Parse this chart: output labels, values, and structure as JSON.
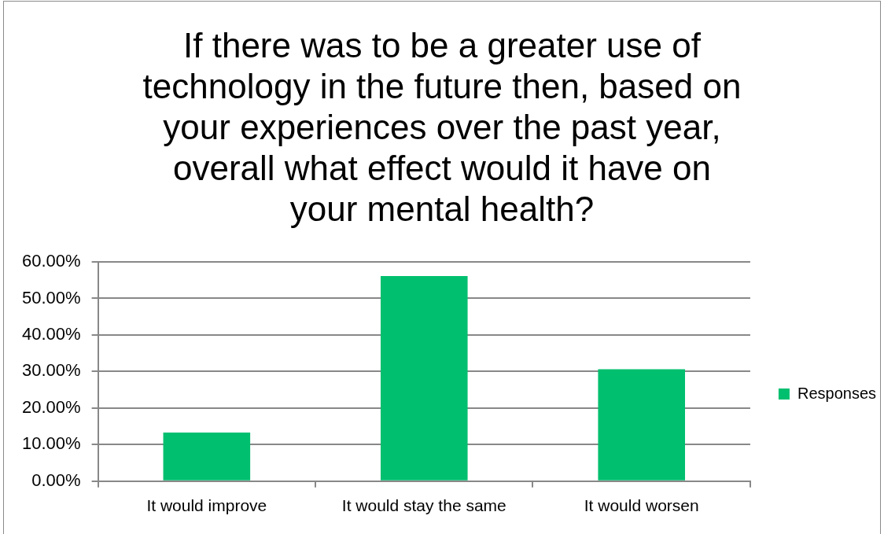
{
  "chart_data": {
    "type": "bar",
    "title": "If there was to be a greater use of technology in the future then, based on your experiences over the past year, overall what effect would it have on your mental health?",
    "categories": [
      "It would improve",
      "It would stay the same",
      "It would worsen"
    ],
    "series": [
      {
        "name": "Responses",
        "color": "#00bf6f",
        "values": [
          13.3,
          56.1,
          30.6
        ]
      }
    ],
    "ylim": [
      0,
      60
    ],
    "yticks": [
      {
        "value": 0,
        "label": "0.00%"
      },
      {
        "value": 10,
        "label": "10.00%"
      },
      {
        "value": 20,
        "label": "20.00%"
      },
      {
        "value": 30,
        "label": "30.00%"
      },
      {
        "value": 40,
        "label": "40.00%"
      },
      {
        "value": 50,
        "label": "50.00%"
      },
      {
        "value": 60,
        "label": "60.00%"
      }
    ],
    "grid": "y",
    "legend": "right"
  }
}
